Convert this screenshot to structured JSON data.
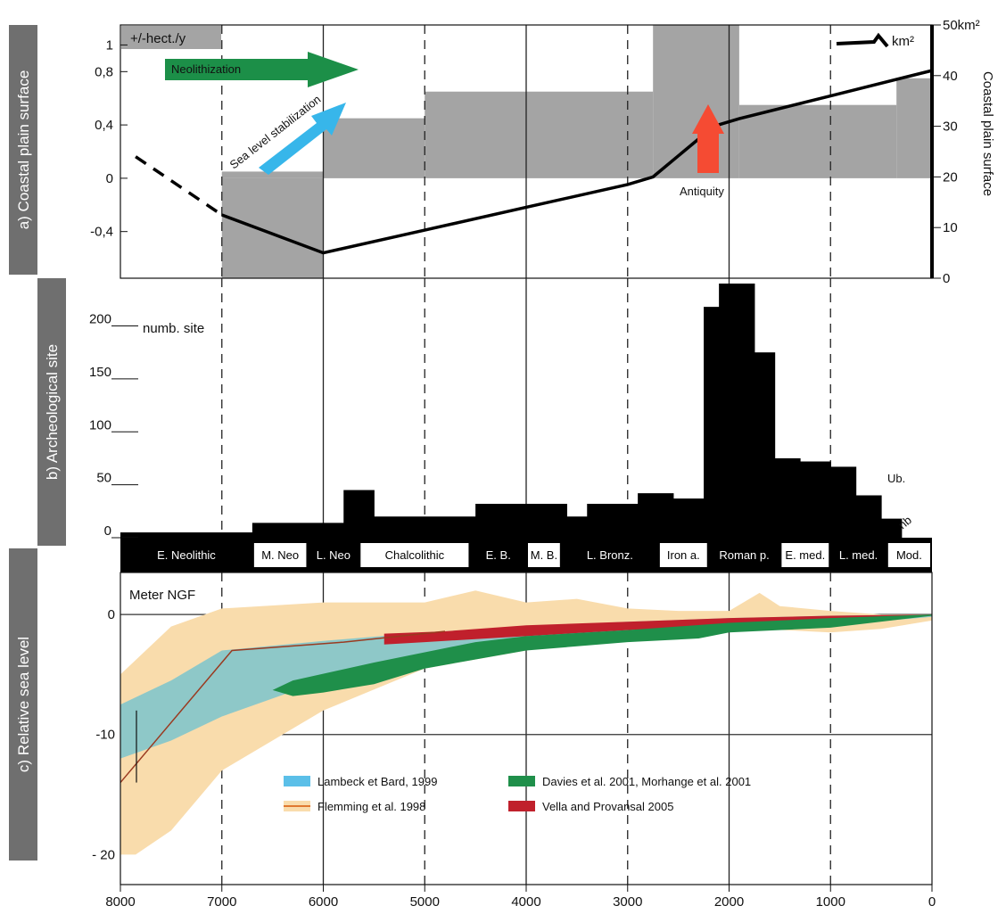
{
  "chart_data": [
    {
      "id": "coastal",
      "type": "bar",
      "side_label": "a) Coastal plain surface",
      "left_axis_title": "+/-hect./y",
      "right_axis_title": "Coastal plain surface",
      "right_axis_unit_label": "km²",
      "left_ticks": [
        {
          "v": 1.0,
          "label": "1"
        },
        {
          "v": 0.8,
          "label": "0,8"
        },
        {
          "v": 0.4,
          "label": "0,4"
        },
        {
          "v": 0.0,
          "label": "0"
        },
        {
          "v": -0.4,
          "label": "-0,4"
        }
      ],
      "right_ticks": [
        {
          "v": 50,
          "label": "50km²"
        },
        {
          "v": 40,
          "label": "40"
        },
        {
          "v": 30,
          "label": "30"
        },
        {
          "v": 20,
          "label": "20"
        },
        {
          "v": 10,
          "label": "10"
        },
        {
          "v": 0,
          "label": "0"
        }
      ],
      "left_range": [
        -0.75,
        1.15
      ],
      "right_range": [
        0,
        50
      ],
      "bars": [
        {
          "x0": 7000,
          "x1": 6000,
          "value": 0.05
        },
        {
          "x0": 7000,
          "x1": 6000,
          "value": -0.75
        },
        {
          "x0": 6000,
          "x1": 5000,
          "value": 0.45
        },
        {
          "x0": 5000,
          "x1": 2750,
          "value": 0.65
        },
        {
          "x0": 2750,
          "x1": 1900,
          "value": 1.15
        },
        {
          "x0": 1900,
          "x1": 350,
          "value": 0.55
        },
        {
          "x0": 350,
          "x1": 0,
          "value": 0.75
        }
      ],
      "surface_line": [
        [
          7000,
          12.5
        ],
        [
          6000,
          5
        ],
        [
          5000,
          9.5
        ],
        [
          4000,
          14
        ],
        [
          3000,
          18.5
        ],
        [
          2750,
          20
        ],
        [
          2450,
          25
        ],
        [
          2150,
          30
        ],
        [
          1900,
          31.5
        ],
        [
          1000,
          36
        ],
        [
          0,
          41
        ]
      ],
      "surface_dashed": [
        [
          7850,
          24
        ],
        [
          7000,
          12.5
        ]
      ],
      "annotations": {
        "neolithization": "Neolithization",
        "sea_level": "Sea level stabilization",
        "antiquity": "Antiquity"
      }
    },
    {
      "id": "archaeo",
      "type": "bar",
      "side_label": "b) Archeological site",
      "y_axis_title": "numb. site",
      "y_ticks": [
        {
          "v": 200,
          "label": "200"
        },
        {
          "v": 150,
          "label": "150"
        },
        {
          "v": 100,
          "label": "100"
        },
        {
          "v": 50,
          "label": "50"
        },
        {
          "v": 0,
          "label": "0"
        }
      ],
      "y_range": [
        0,
        240
      ],
      "bars": [
        {
          "x0": 8000,
          "x1": 6700,
          "value": 5
        },
        {
          "x0": 6700,
          "x1": 5800,
          "value": 14
        },
        {
          "x0": 5800,
          "x1": 5500,
          "value": 45
        },
        {
          "x0": 5500,
          "x1": 4500,
          "value": 20
        },
        {
          "x0": 4500,
          "x1": 3600,
          "value": 32
        },
        {
          "x0": 3600,
          "x1": 3400,
          "value": 20
        },
        {
          "x0": 3400,
          "x1": 2900,
          "value": 32
        },
        {
          "x0": 2900,
          "x1": 2550,
          "value": 42
        },
        {
          "x0": 2550,
          "x1": 2250,
          "value": 37
        },
        {
          "x0": 2250,
          "x1": 2100,
          "value": 218
        },
        {
          "x0": 2100,
          "x1": 1750,
          "value": 240
        },
        {
          "x0": 1750,
          "x1": 1550,
          "value": 175
        },
        {
          "x0": 1550,
          "x1": 1300,
          "value": 75
        },
        {
          "x0": 1300,
          "x1": 1000,
          "value": 72
        },
        {
          "x0": 1000,
          "x1": 750,
          "value": 67
        },
        {
          "x0": 750,
          "x1": 500,
          "value": 40
        },
        {
          "x0": 500,
          "x1": 300,
          "value": 18
        }
      ],
      "annotations": {
        "ub": "Ub.",
        "nb": "nb"
      }
    },
    {
      "id": "periods",
      "type": "table",
      "items": [
        {
          "label": "E. Neolithic",
          "x0": 8000,
          "x1": 6700,
          "dark": true
        },
        {
          "label": "M. Neo",
          "x0": 6700,
          "x1": 6150,
          "dark": false
        },
        {
          "label": "L. Neo",
          "x0": 6150,
          "x1": 5650,
          "dark": true
        },
        {
          "label": "Chalcolithic",
          "x0": 5650,
          "x1": 4550,
          "dark": false
        },
        {
          "label": "E. B.",
          "x0": 4550,
          "x1": 4000,
          "dark": true
        },
        {
          "label": "M. B.",
          "x0": 4000,
          "x1": 3650,
          "dark": false
        },
        {
          "label": "L. Bronz.",
          "x0": 3650,
          "x1": 2700,
          "dark": true
        },
        {
          "label": "Iron a.",
          "x0": 2700,
          "x1": 2200,
          "dark": false
        },
        {
          "label": "Roman p.",
          "x0": 2200,
          "x1": 1500,
          "dark": true
        },
        {
          "label": "E. med.",
          "x0": 1500,
          "x1": 1000,
          "dark": false
        },
        {
          "label": "L. med.",
          "x0": 1000,
          "x1": 450,
          "dark": true
        },
        {
          "label": "Mod.",
          "x0": 450,
          "x1": 0,
          "dark": false
        }
      ]
    },
    {
      "id": "sealevel",
      "type": "area",
      "side_label": "c) Relative sea level",
      "y_axis_title": "Meter NGF",
      "y_ticks": [
        {
          "v": 0,
          "label": "0"
        },
        {
          "v": -10,
          "label": "-10"
        },
        {
          "v": -20,
          "label": "- 20"
        }
      ],
      "y_range": [
        -22.5,
        3.5
      ],
      "x_ticks": [
        8000,
        7000,
        6000,
        5000,
        4000,
        3000,
        2000,
        1000,
        0
      ],
      "x_range": [
        8000,
        0
      ],
      "series": [
        {
          "name": "Lambeck et Bard, 1999",
          "color": "#f9dcac",
          "upper": [
            [
              8000,
              -5
            ],
            [
              7500,
              -1
            ],
            [
              7000,
              0.5
            ],
            [
              6000,
              1
            ],
            [
              5000,
              1
            ],
            [
              4500,
              2
            ],
            [
              4000,
              1
            ],
            [
              3500,
              1.3
            ],
            [
              3000,
              0.5
            ],
            [
              2500,
              0.3
            ],
            [
              2000,
              0.3
            ],
            [
              1700,
              1.8
            ],
            [
              1500,
              0.7
            ],
            [
              1000,
              0.3
            ],
            [
              500,
              0
            ],
            [
              0,
              0
            ]
          ],
          "lower": [
            [
              0,
              -0.5
            ],
            [
              500,
              -1.2
            ],
            [
              1000,
              -1.5
            ],
            [
              1700,
              -1.2
            ],
            [
              3000,
              -1.5
            ],
            [
              4000,
              -3
            ],
            [
              5000,
              -4.5
            ],
            [
              6000,
              -8
            ],
            [
              7000,
              -13
            ],
            [
              7500,
              -18
            ],
            [
              7850,
              -20
            ],
            [
              8000,
              -20
            ]
          ]
        },
        {
          "name": "Davies et al. 2001, Morhange et al. 2001",
          "color": "#8ec8c8",
          "upper": [
            [
              8000,
              -7.5
            ],
            [
              7500,
              -5.5
            ],
            [
              7000,
              -3
            ],
            [
              6000,
              -2.2
            ],
            [
              5000,
              -1.5
            ],
            [
              4000,
              -1
            ],
            [
              3000,
              -0.6
            ],
            [
              2000,
              -0.3
            ],
            [
              1000,
              -0.1
            ],
            [
              0,
              0
            ]
          ],
          "lower": [
            [
              0,
              -0.2
            ],
            [
              1000,
              -0.9
            ],
            [
              2000,
              -1.3
            ],
            [
              3000,
              -1.8
            ],
            [
              4000,
              -2.6
            ],
            [
              5000,
              -4
            ],
            [
              6000,
              -5.5
            ],
            [
              7000,
              -8.5
            ],
            [
              7500,
              -10.5
            ],
            [
              8000,
              -12
            ]
          ]
        },
        {
          "name": "Vella and Provansal 2005",
          "color": "#c0202c",
          "upper": [
            [
              5400,
              -1.6
            ],
            [
              4800,
              -1.4
            ],
            [
              4000,
              -0.9
            ],
            [
              3000,
              -0.6
            ],
            [
              2000,
              -0.3
            ],
            [
              1000,
              -0.1
            ],
            [
              0,
              0
            ]
          ],
          "lower": [
            [
              0,
              -0.1
            ],
            [
              1000,
              -0.5
            ],
            [
              2000,
              -0.9
            ],
            [
              3000,
              -1.3
            ],
            [
              4000,
              -1.8
            ],
            [
              5000,
              -2.3
            ],
            [
              5400,
              -2.5
            ]
          ]
        },
        {
          "name": "Flemming et al. 1998",
          "color": "#1f8f4a",
          "upper": [
            [
              6300,
              -5.5
            ],
            [
              5500,
              -4
            ],
            [
              4500,
              -2.3
            ],
            [
              4000,
              -1.8
            ],
            [
              3000,
              -1.3
            ],
            [
              2000,
              -0.7
            ],
            [
              1000,
              -0.3
            ],
            [
              0,
              0
            ]
          ],
          "lower": [
            [
              0,
              -0.1
            ],
            [
              1000,
              -1.1
            ],
            [
              2000,
              -1.5
            ],
            [
              2300,
              -2
            ],
            [
              3000,
              -2.3
            ],
            [
              4000,
              -3
            ],
            [
              5000,
              -4.5
            ],
            [
              5500,
              -5.8
            ],
            [
              6000,
              -6.5
            ],
            [
              6300,
              -6.8
            ],
            [
              6500,
              -6.3
            ]
          ]
        }
      ],
      "flemming_line": {
        "color": "#9a3a20",
        "points": [
          [
            8000,
            -14
          ],
          [
            6900,
            -3
          ],
          [
            5800,
            -2.3
          ],
          [
            4800,
            -1.4
          ]
        ]
      },
      "legend": [
        {
          "label": "Lambeck et Bard, 1999",
          "swatch": "#5bbfe8"
        },
        {
          "label": "Flemming et al. 1998",
          "swatch": "#e07830",
          "type": "line"
        },
        {
          "label": "Davies et al. 2001, Morhange et al. 2001",
          "swatch": "#1f8f4a"
        },
        {
          "label": "Vella and Provansal 2005",
          "swatch": "#c0202c"
        }
      ]
    }
  ],
  "colors": {
    "bar_gray": "#a4a4a4",
    "surface_line": "#000000",
    "neolithization_arrow": "#1c8f48",
    "sea_level_arrow": "#37b6ea",
    "antiquity_arrow": "#f54b33",
    "side_label_bg": "#6f6f6f"
  }
}
